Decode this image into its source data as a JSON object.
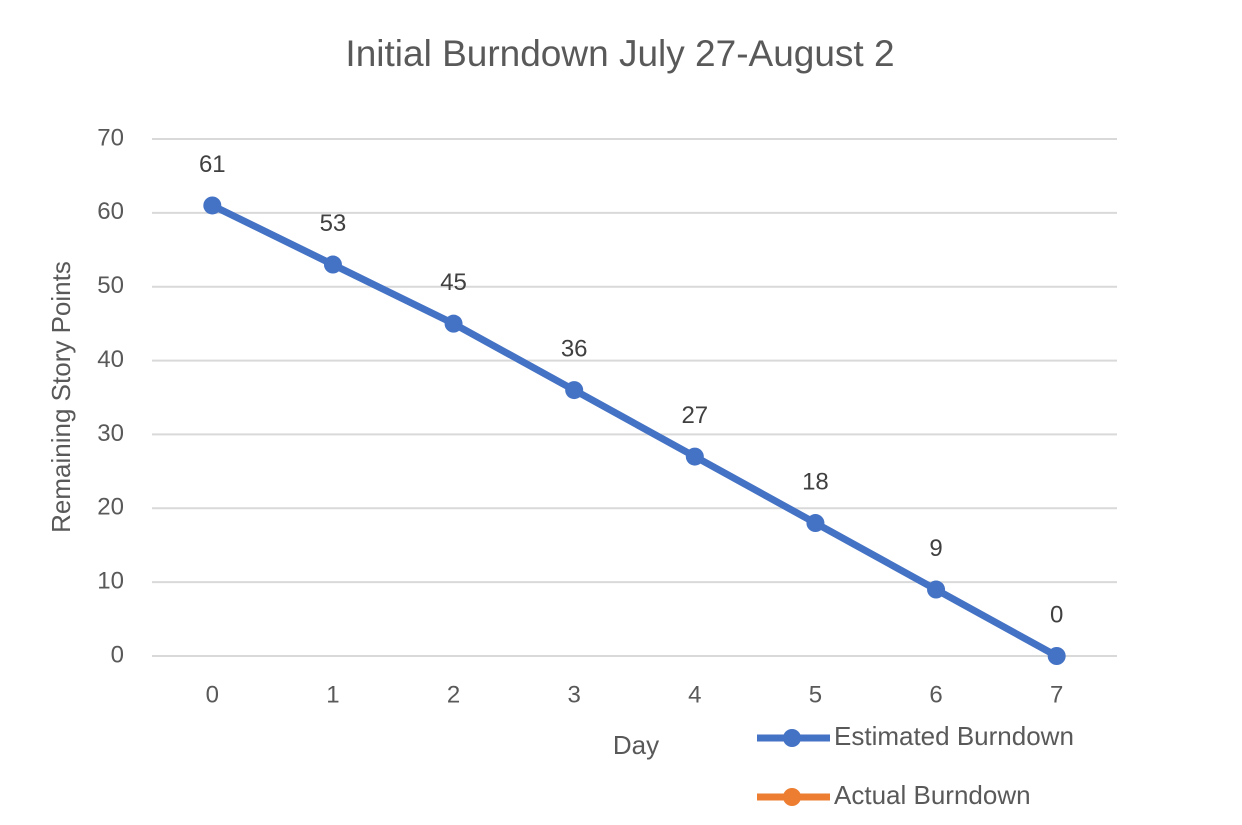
{
  "chart_data": {
    "type": "line",
    "title": "Initial Burndown July 27-August 2",
    "x_label": "Day",
    "y_label": "Remaining Story Points",
    "categories": [
      "0",
      "1",
      "2",
      "3",
      "4",
      "5",
      "6",
      "7"
    ],
    "series": [
      {
        "name": "Estimated Burndown",
        "color": "#4472c4",
        "values": [
          61,
          53,
          45,
          36,
          27,
          18,
          9,
          0
        ]
      },
      {
        "name": "Actual Burndown",
        "color": "#ed7d31",
        "values": [
          null,
          null,
          null,
          null,
          null,
          null,
          null,
          null
        ]
      }
    ],
    "ylim": [
      0,
      70
    ],
    "yticks": [
      0,
      10,
      20,
      30,
      40,
      50,
      60,
      70
    ],
    "grid": true,
    "data_labels": true,
    "legend": "bottom-right"
  }
}
